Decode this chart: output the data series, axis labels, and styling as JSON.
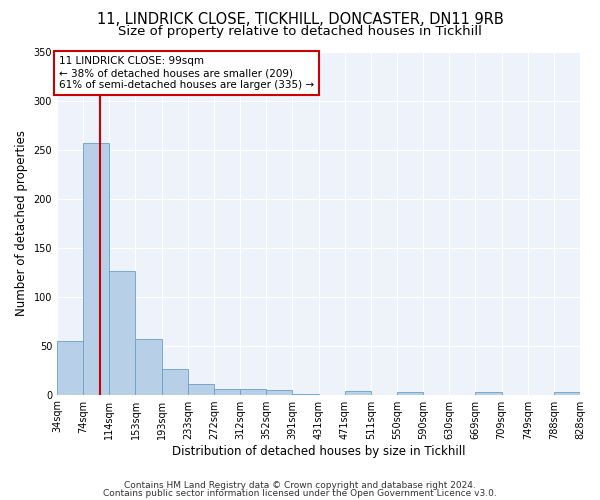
{
  "title1": "11, LINDRICK CLOSE, TICKHILL, DONCASTER, DN11 9RB",
  "title2": "Size of property relative to detached houses in Tickhill",
  "xlabel": "Distribution of detached houses by size in Tickhill",
  "ylabel": "Number of detached properties",
  "footer1": "Contains HM Land Registry data © Crown copyright and database right 2024.",
  "footer2": "Contains public sector information licensed under the Open Government Licence v3.0.",
  "bin_labels": [
    "34sqm",
    "74sqm",
    "114sqm",
    "153sqm",
    "193sqm",
    "233sqm",
    "272sqm",
    "312sqm",
    "352sqm",
    "391sqm",
    "431sqm",
    "471sqm",
    "511sqm",
    "550sqm",
    "590sqm",
    "630sqm",
    "669sqm",
    "709sqm",
    "749sqm",
    "788sqm",
    "828sqm"
  ],
  "bar_values": [
    55,
    257,
    126,
    57,
    26,
    11,
    6,
    6,
    5,
    1,
    0,
    4,
    0,
    3,
    0,
    0,
    3,
    0,
    0,
    3
  ],
  "bar_color": "#b8cfe8",
  "bar_edge_color": "#6a9fc8",
  "property_line_x": 1.63,
  "annotation_text": "11 LINDRICK CLOSE: 99sqm\n← 38% of detached houses are smaller (209)\n61% of semi-detached houses are larger (335) →",
  "red_line_color": "#cc0000",
  "annotation_box_color": "#ffffff",
  "annotation_box_edge": "#cc0000",
  "ylim": [
    0,
    350
  ],
  "yticks": [
    0,
    50,
    100,
    150,
    200,
    250,
    300,
    350
  ],
  "background_color": "#eef2fa",
  "grid_color": "#ffffff",
  "title1_fontsize": 10.5,
  "title2_fontsize": 9.5,
  "xlabel_fontsize": 8.5,
  "ylabel_fontsize": 8.5,
  "tick_fontsize": 7,
  "footer_fontsize": 6.5
}
